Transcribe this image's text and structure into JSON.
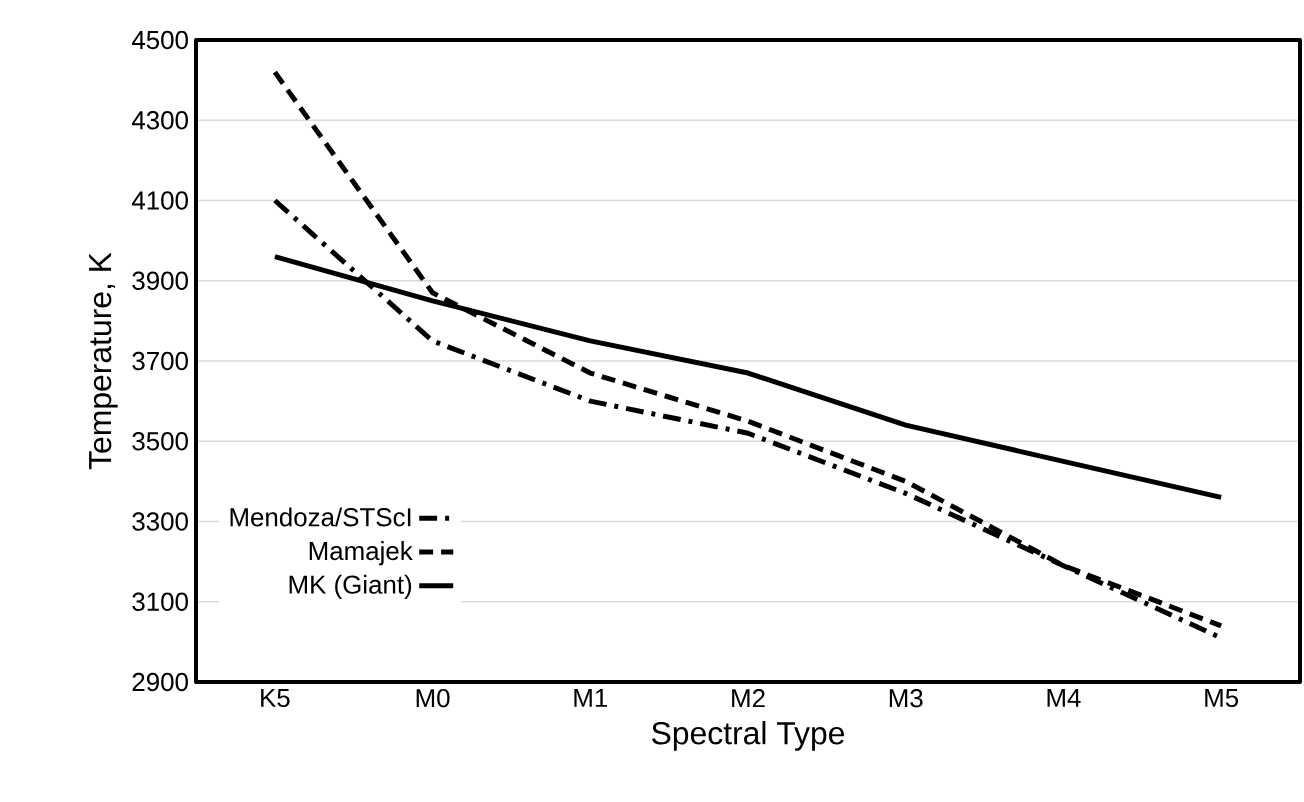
{
  "chart_data": {
    "type": "line",
    "xlabel": "Spectral Type",
    "ylabel": "Temperature, K",
    "categories": [
      "K5",
      "M0",
      "M1",
      "M2",
      "M3",
      "M4",
      "M5"
    ],
    "series": [
      {
        "name": "Mendoza/STScI",
        "color": "#000000",
        "line_style": "dashdot",
        "values": [
          4100,
          3750,
          3600,
          3520,
          3370,
          3190,
          3010
        ]
      },
      {
        "name": "Mamajek",
        "color": "#000000",
        "line_style": "dashed",
        "values": [
          4420,
          3870,
          3670,
          3550,
          3400,
          3190,
          3040
        ]
      },
      {
        "name": "MK (Giant)",
        "color": "#000000",
        "line_style": "solid",
        "values": [
          3960,
          3850,
          3750,
          3670,
          3540,
          3450,
          3360
        ]
      }
    ],
    "ylim": [
      2900,
      4500
    ],
    "yticks": [
      2900,
      3100,
      3300,
      3500,
      3700,
      3900,
      4100,
      4300,
      4500
    ],
    "grid": "y",
    "legend": "left",
    "marker": "none"
  }
}
